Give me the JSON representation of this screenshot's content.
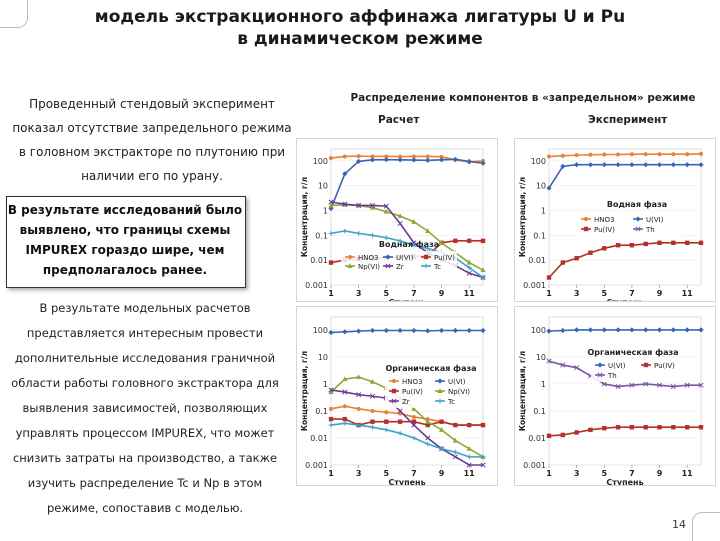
{
  "slide": {
    "title_line1": "модель экстракционного аффинажа лигатуры U и Pu",
    "title_line2": "в динамическом режиме",
    "para1": "Проведенный стендовый эксперимент показал отсутствие запредельного режима в головном экстракторе по плутонию при наличии его по урану.",
    "highlight": "В результате исследований было выявлено, что границы схемы IMPUREX гораздо шире, чем предполагалось ранее.",
    "para2": "В результате модельных расчетов представляется интересным провести дополнительные исследования граничной области работы головного экстрактора для выявления зависимостей, позволяющих управлять процессом IMPUREX, что может снизить затраты на производство, а также изучить распределение Tc и Np в этом режиме, сопоставив с моделью.",
    "chart_header": "Распределение компонентов в «запредельном» режиме",
    "label_calc": "Расчет",
    "label_exp": "Эксперимент",
    "page_number": "14"
  },
  "colors": {
    "HNO3": "#e8823a",
    "U(VI)": "#3a64b4",
    "Pu(IV)": "#b4302a",
    "Np(VI)": "#8ea83a",
    "Zr": "#6a3a96",
    "Tc": "#3aa2c8",
    "Th": "#7a56a6"
  },
  "chart_data": [
    {
      "id": "calc-aqueous",
      "type": "line",
      "title": "Водная фаза",
      "ylabel": "Концентрация, г/л",
      "xlabel": "Ступень",
      "y_scale": "log",
      "ylim": [
        0.001,
        300
      ],
      "xlim": [
        1,
        12
      ],
      "xticks": [
        1,
        3,
        5,
        7,
        9,
        11
      ],
      "ytick_labels": [
        "100",
        "10",
        "1",
        "0.1",
        "0.01",
        "0.001"
      ],
      "legend_placement": "bottom-center",
      "series": [
        {
          "name": "HNO3",
          "marker": "circle",
          "x": [
            1,
            2,
            3,
            4,
            5,
            6,
            7,
            8,
            9,
            10,
            11,
            12
          ],
          "y": [
            130,
            150,
            155,
            150,
            152,
            148,
            150,
            150,
            145,
            110,
            90,
            100
          ]
        },
        {
          "name": "U(VI)",
          "marker": "diamond",
          "x": [
            1,
            2,
            3,
            4,
            5,
            6,
            7,
            8,
            9,
            10,
            11,
            12
          ],
          "y": [
            1.2,
            30,
            95,
            110,
            112,
            110,
            108,
            105,
            110,
            115,
            95,
            80
          ]
        },
        {
          "name": "Pu(IV)",
          "marker": "square",
          "x": [
            1,
            2,
            3,
            4,
            5,
            6,
            7,
            8,
            9,
            10,
            11,
            12
          ],
          "y": [
            0.008,
            0.01,
            0.011,
            0.012,
            0.013,
            0.013,
            0.014,
            0.015,
            0.05,
            0.06,
            0.06,
            0.06
          ]
        },
        {
          "name": "Np(VI)",
          "marker": "triangle",
          "x": [
            1,
            2,
            3,
            4,
            5,
            6,
            7,
            8,
            9,
            10,
            11,
            12
          ],
          "y": [
            1.6,
            1.7,
            1.6,
            1.3,
            0.9,
            0.6,
            0.35,
            0.15,
            0.05,
            0.02,
            0.008,
            0.004
          ]
        },
        {
          "name": "Zr",
          "marker": "x",
          "x": [
            1,
            2,
            3,
            4,
            5,
            6,
            7,
            8,
            9,
            10,
            11,
            12
          ],
          "y": [
            2.2,
            1.8,
            1.6,
            1.6,
            1.5,
            0.3,
            0.05,
            0.02,
            0.01,
            0.006,
            0.003,
            0.002
          ]
        },
        {
          "name": "Tc",
          "marker": "cross",
          "x": [
            1,
            2,
            3,
            4,
            5,
            6,
            7,
            8,
            9,
            10,
            11,
            12
          ],
          "y": [
            0.12,
            0.15,
            0.12,
            0.1,
            0.08,
            0.06,
            0.04,
            0.03,
            0.02,
            0.012,
            0.005,
            0.002
          ]
        }
      ]
    },
    {
      "id": "exp-aqueous",
      "type": "line",
      "title": "Водная фаза",
      "ylabel": "Концентрация, г/л",
      "xlabel": "Ступень",
      "y_scale": "log",
      "ylim": [
        0.001,
        300
      ],
      "xlim": [
        1,
        12
      ],
      "xticks": [
        1,
        3,
        5,
        7,
        9,
        11
      ],
      "ytick_labels": [
        "100",
        "10",
        "1",
        "0.1",
        "0.01",
        "0.001"
      ],
      "legend_placement": "middle-right",
      "series": [
        {
          "name": "HNO3",
          "marker": "circle",
          "x": [
            1,
            2,
            3,
            4,
            5,
            6,
            7,
            8,
            9,
            10,
            11,
            12
          ],
          "y": [
            150,
            160,
            170,
            175,
            180,
            180,
            185,
            185,
            185,
            185,
            185,
            190
          ]
        },
        {
          "name": "U(VI)",
          "marker": "diamond",
          "x": [
            1,
            2,
            3,
            4,
            5,
            6,
            7,
            8,
            9,
            10,
            11,
            12
          ],
          "y": [
            8,
            60,
            70,
            70,
            70,
            70,
            70,
            70,
            70,
            70,
            70,
            70
          ]
        },
        {
          "name": "Pu(IV)",
          "marker": "square",
          "x": [
            1,
            2,
            3,
            4,
            5,
            6,
            7,
            8,
            9,
            10,
            11,
            12
          ],
          "y": [
            0.002,
            0.008,
            0.012,
            0.02,
            0.03,
            0.04,
            0.04,
            0.045,
            0.05,
            0.05,
            0.05,
            0.05
          ]
        },
        {
          "name": "Th",
          "marker": "x",
          "x": [],
          "y": []
        }
      ]
    },
    {
      "id": "calc-organic",
      "type": "line",
      "title": "Органическая фаза",
      "ylabel": "Концентрация, г/л",
      "xlabel": "Ступень",
      "y_scale": "log",
      "ylim": [
        0.001,
        300
      ],
      "xlim": [
        1,
        12
      ],
      "xticks": [
        1,
        3,
        5,
        7,
        9,
        11
      ],
      "ytick_labels": [
        "100",
        "10",
        "1",
        "0.1",
        "0.01",
        "0.001"
      ],
      "legend_placement": "middle-right",
      "series": [
        {
          "name": "HNO3",
          "marker": "circle",
          "x": [
            1,
            2,
            3,
            4,
            5,
            6,
            7,
            8,
            9,
            10,
            11,
            12
          ],
          "y": [
            0.12,
            0.15,
            0.12,
            0.1,
            0.09,
            0.08,
            0.06,
            0.05,
            0.04,
            0.03,
            0.03,
            0.03
          ]
        },
        {
          "name": "U(VI)",
          "marker": "diamond",
          "x": [
            1,
            2,
            3,
            4,
            5,
            6,
            7,
            8,
            9,
            10,
            11,
            12
          ],
          "y": [
            80,
            85,
            90,
            95,
            95,
            95,
            95,
            92,
            95,
            95,
            95,
            95
          ]
        },
        {
          "name": "Pu(IV)",
          "marker": "square",
          "x": [
            1,
            2,
            3,
            4,
            5,
            6,
            7,
            8,
            9,
            10,
            11,
            12
          ],
          "y": [
            0.05,
            0.05,
            0.03,
            0.04,
            0.04,
            0.04,
            0.04,
            0.03,
            0.04,
            0.03,
            0.03,
            0.03
          ]
        },
        {
          "name": "Np(VI)",
          "marker": "triangle",
          "x": [
            1,
            2,
            3,
            4,
            5,
            6,
            7,
            8,
            9,
            10,
            11,
            12
          ],
          "y": [
            0.5,
            1.5,
            1.8,
            1.2,
            0.7,
            0.3,
            0.12,
            0.04,
            0.02,
            0.008,
            0.004,
            0.002
          ]
        },
        {
          "name": "Zr",
          "marker": "x",
          "x": [
            1,
            2,
            3,
            4,
            5,
            6,
            7,
            8,
            9,
            10,
            11,
            12
          ],
          "y": [
            0.6,
            0.5,
            0.4,
            0.35,
            0.3,
            0.1,
            0.03,
            0.01,
            0.004,
            0.002,
            0.001,
            0.001
          ]
        },
        {
          "name": "Tc",
          "marker": "cross",
          "x": [
            1,
            2,
            3,
            4,
            5,
            6,
            7,
            8,
            9,
            10,
            11,
            12
          ],
          "y": [
            0.03,
            0.035,
            0.03,
            0.025,
            0.02,
            0.015,
            0.01,
            0.006,
            0.004,
            0.003,
            0.002,
            0.002
          ]
        }
      ]
    },
    {
      "id": "exp-organic",
      "type": "line",
      "title": "Органическая фаза",
      "ylabel": "Концентрация, г/л",
      "xlabel": "Ступень",
      "y_scale": "log",
      "ylim": [
        0.001,
        300
      ],
      "xlim": [
        1,
        12
      ],
      "xticks": [
        1,
        3,
        5,
        7,
        9,
        11
      ],
      "ytick_labels": [
        "100",
        "10",
        "1",
        "0.1",
        "0.01",
        "0.001"
      ],
      "legend_placement": "top-right",
      "series": [
        {
          "name": "U(VI)",
          "marker": "diamond",
          "x": [
            1,
            2,
            3,
            4,
            5,
            6,
            7,
            8,
            9,
            10,
            11,
            12
          ],
          "y": [
            90,
            95,
            100,
            100,
            100,
            100,
            100,
            100,
            100,
            100,
            100,
            100
          ]
        },
        {
          "name": "Pu(IV)",
          "marker": "square",
          "x": [
            1,
            2,
            3,
            4,
            5,
            6,
            7,
            8,
            9,
            10,
            11,
            12
          ],
          "y": [
            0.012,
            0.013,
            0.016,
            0.02,
            0.023,
            0.025,
            0.025,
            0.025,
            0.025,
            0.025,
            0.025,
            0.025
          ]
        },
        {
          "name": "Th",
          "marker": "x",
          "x": [
            1,
            2,
            3,
            4,
            5,
            6,
            7,
            8,
            9,
            10,
            11,
            12
          ],
          "y": [
            7,
            5,
            4,
            2,
            1,
            0.8,
            0.9,
            1,
            0.9,
            0.8,
            0.9,
            0.9
          ]
        }
      ]
    }
  ]
}
